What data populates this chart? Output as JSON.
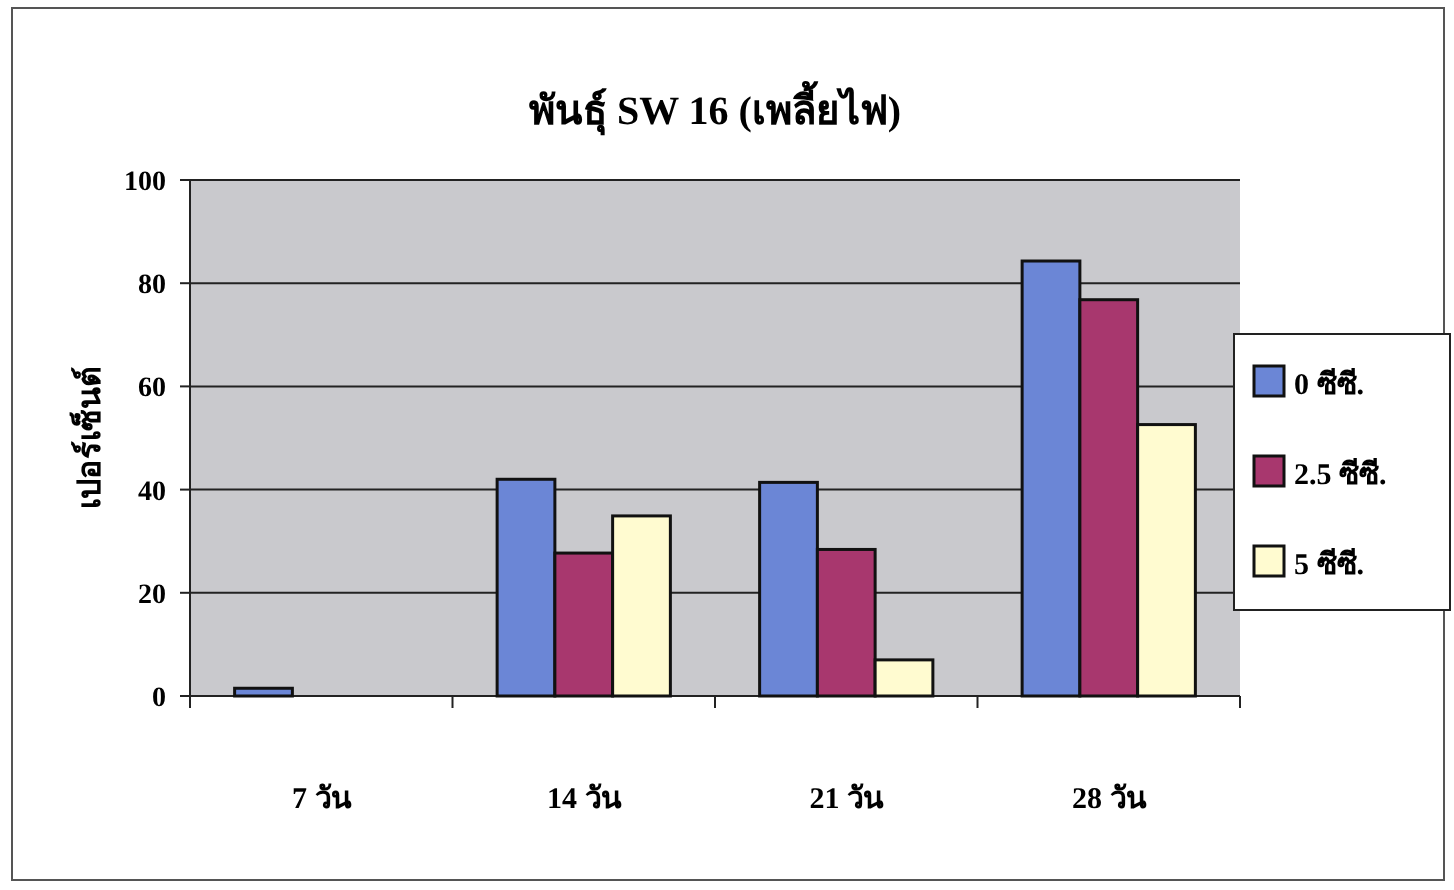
{
  "chart_data": {
    "type": "bar",
    "title": "พันธุ์ SW 16 (เพลี้ยไฟ)",
    "ylabel": "เปอร์เซ็นต์",
    "categories": [
      "7 วัน",
      "14 วัน",
      "21 วัน",
      "28 วัน"
    ],
    "series": [
      {
        "name": "0 ซีซี.",
        "color": "#6b86d6",
        "values": [
          1.5,
          42,
          41.4,
          84.3
        ]
      },
      {
        "name": "2.5 ซีซี.",
        "color": "#a8376e",
        "values": [
          0,
          27.7,
          28.4,
          76.8
        ]
      },
      {
        "name": "5 ซีซี.",
        "color": "#fffbd0",
        "values": [
          0,
          34.9,
          7,
          52.6
        ]
      }
    ],
    "ylim": [
      0,
      100
    ],
    "yticks": [
      0,
      20,
      40,
      60,
      80,
      100
    ],
    "grid": "y",
    "legend": "right"
  }
}
